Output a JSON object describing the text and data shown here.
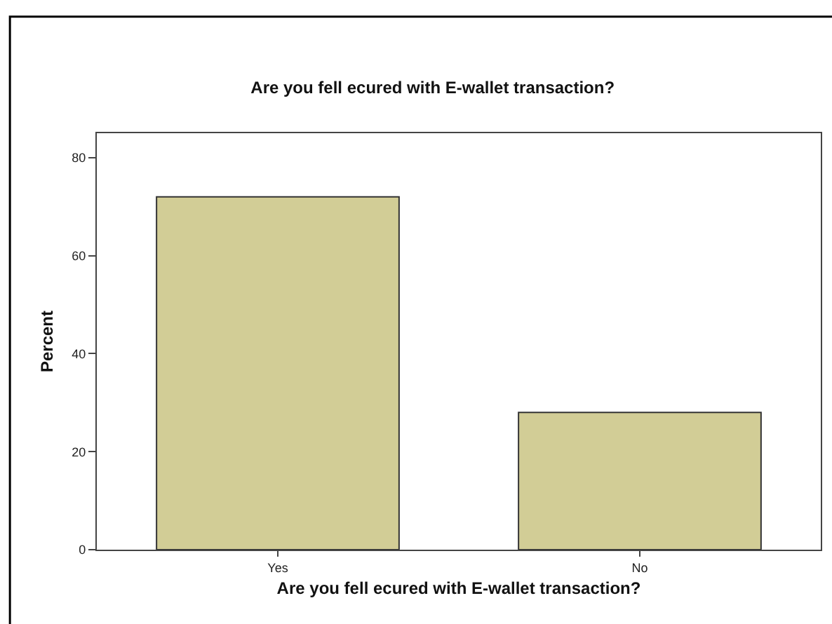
{
  "chart_data": {
    "type": "bar",
    "title": "Are you fell ecured with E-wallet transaction?",
    "xlabel": "Are you fell ecured with E-wallet transaction?",
    "ylabel": "Percent",
    "categories": [
      "Yes",
      "No"
    ],
    "values": [
      72,
      28
    ],
    "color": "#d2cd96",
    "ylim": [
      0,
      85
    ],
    "yticks": [
      0,
      20,
      40,
      60,
      80
    ],
    "grid": false
  }
}
